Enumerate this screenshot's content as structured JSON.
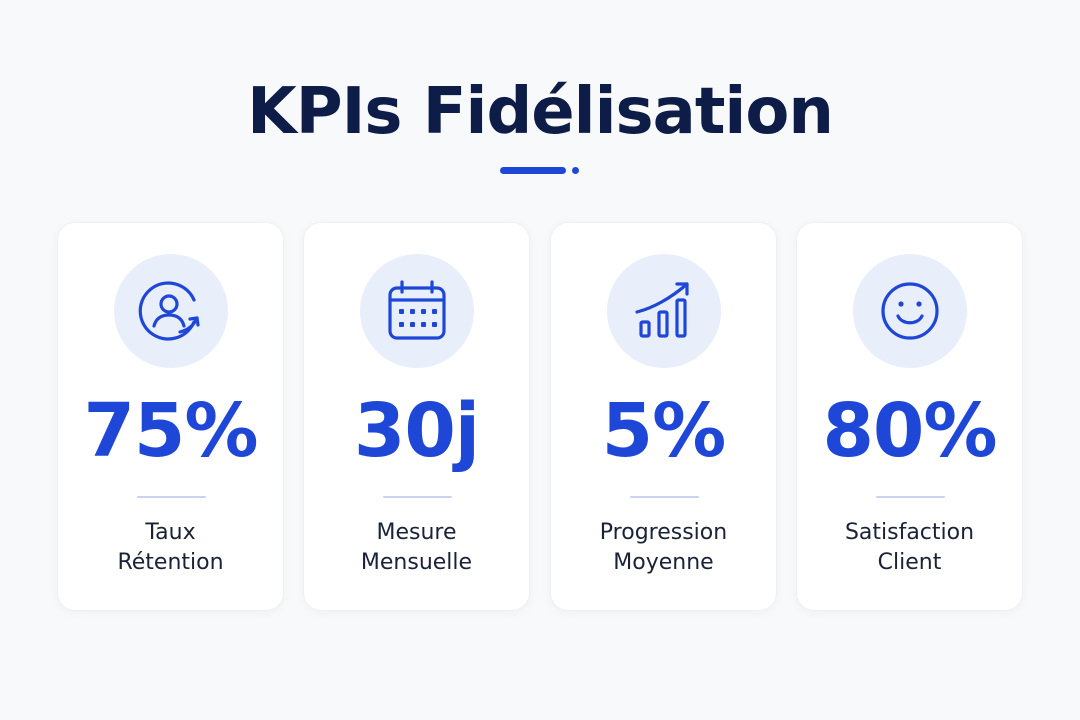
{
  "header": {
    "title": "KPIs Fidélisation"
  },
  "colors": {
    "accent": "#1e47d8",
    "title": "#0e1c48",
    "icon_bg": "#e9eefb",
    "background": "#f8f9fb"
  },
  "cards": [
    {
      "icon": "user-cycle-icon",
      "value": "75%",
      "label_line1": "Taux",
      "label_line2": "Rétention"
    },
    {
      "icon": "calendar-icon",
      "value": "30j",
      "label_line1": "Mesure",
      "label_line2": "Mensuelle"
    },
    {
      "icon": "growth-chart-icon",
      "value": "5%",
      "label_line1": "Progression",
      "label_line2": "Moyenne"
    },
    {
      "icon": "smiley-icon",
      "value": "80%",
      "label_line1": "Satisfaction",
      "label_line2": "Client"
    }
  ]
}
